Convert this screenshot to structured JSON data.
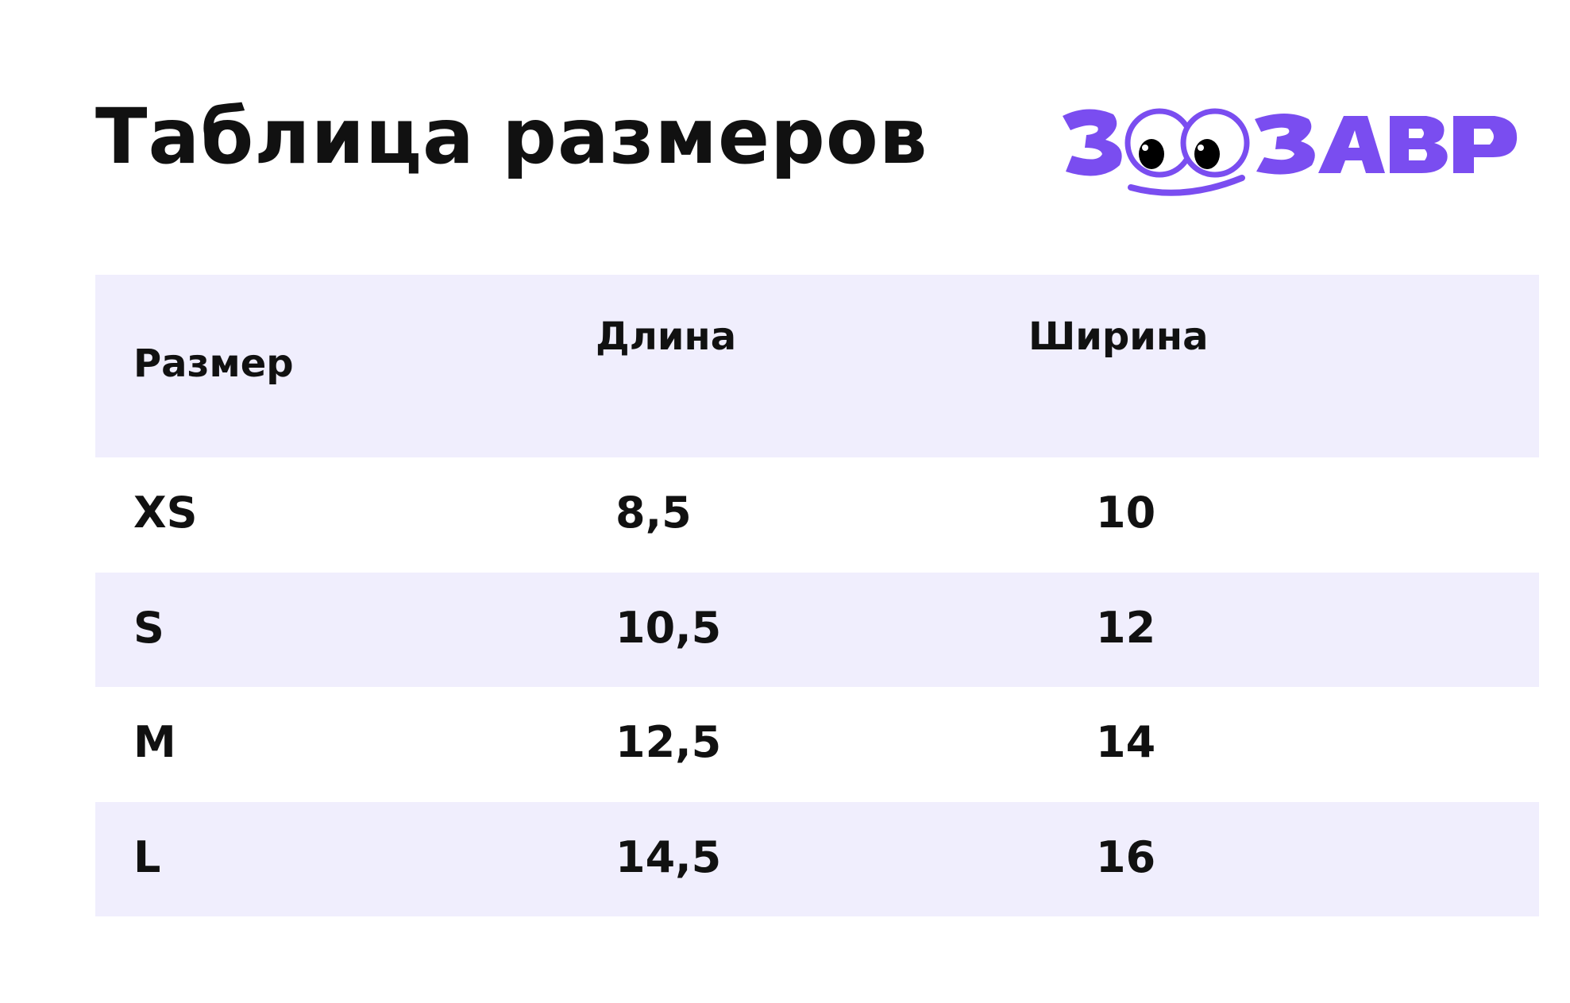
{
  "title": "Таблица размеров",
  "logo": {
    "text": "ЗООЗАВР",
    "color": "#7a4df0"
  },
  "table": {
    "headers": [
      "Размер",
      "Длина",
      "Ширина"
    ],
    "rows": [
      [
        "XS",
        "8,5",
        "10"
      ],
      [
        "S",
        "10,5",
        "12"
      ],
      [
        "M",
        "12,5",
        "14"
      ],
      [
        "L",
        "14,5",
        "16"
      ]
    ],
    "stripe_color": "#f0eefd"
  }
}
